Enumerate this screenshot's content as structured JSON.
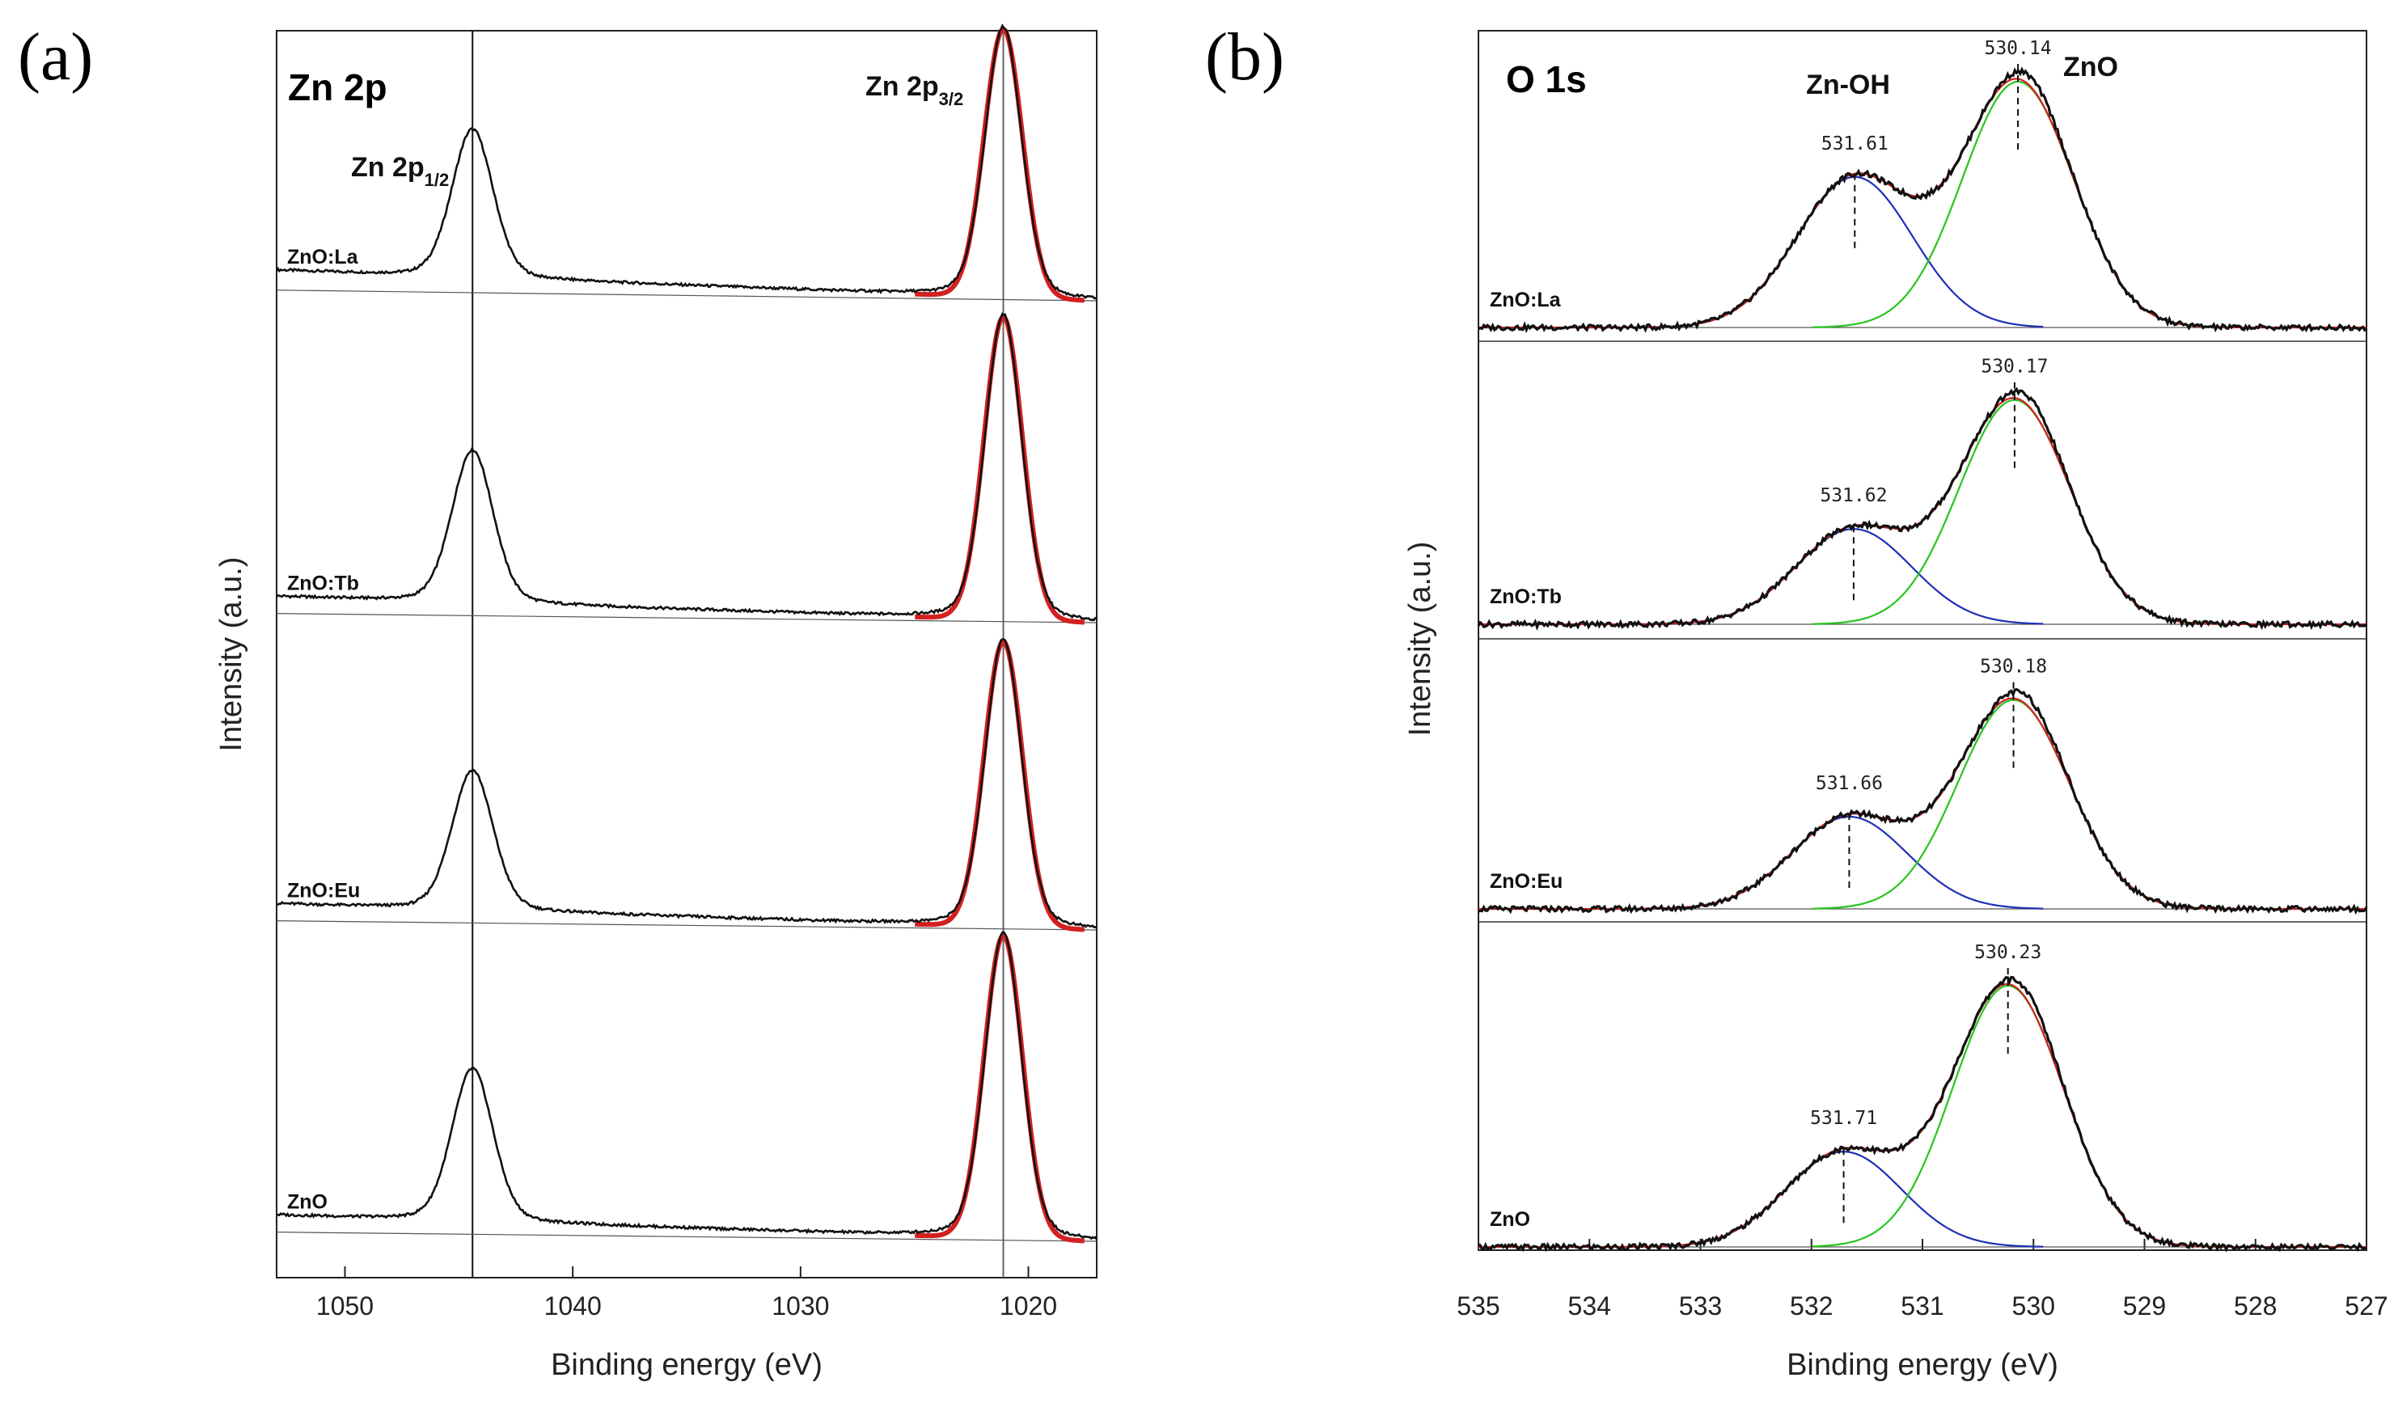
{
  "chart_data": [
    {
      "panel": "(a)",
      "type": "line",
      "title": "Zn 2p",
      "xlabel": "Binding energy (eV)",
      "ylabel": "Intensity (a.u.)",
      "xlim": [
        1053,
        1017
      ],
      "xticks": [
        1050,
        1040,
        1030,
        1020
      ],
      "tick_labels": [
        "1050",
        "1040",
        "1030",
        "1020"
      ],
      "annotations": [
        {
          "main": "Zn 2p",
          "sub": "1/2",
          "x": 1044.4
        },
        {
          "main": "Zn 2p",
          "sub": "3/2",
          "x": 1021.1
        }
      ],
      "reference_lines": [
        1044.4,
        1021.1
      ],
      "series": [
        {
          "name": "ZnO:La",
          "peaks": [
            {
              "center": 1044.4,
              "height": 0.68,
              "width": 0.9
            },
            {
              "center": 1021.1,
              "height": 1.24,
              "width": 0.8
            }
          ],
          "baseline_left": 0.14,
          "baseline_right": 0.0
        },
        {
          "name": "ZnO:Tb",
          "peaks": [
            {
              "center": 1044.4,
              "height": 0.7,
              "width": 0.9
            },
            {
              "center": 1021.1,
              "height": 1.4,
              "width": 0.8
            }
          ],
          "baseline_left": 0.12,
          "baseline_right": 0.0
        },
        {
          "name": "ZnO:Eu",
          "peaks": [
            {
              "center": 1044.4,
              "height": 0.64,
              "width": 0.9
            },
            {
              "center": 1021.1,
              "height": 1.32,
              "width": 0.8
            }
          ],
          "baseline_left": 0.12,
          "baseline_right": 0.0
        },
        {
          "name": "ZnO",
          "peaks": [
            {
              "center": 1044.4,
              "height": 0.7,
              "width": 0.9
            },
            {
              "center": 1021.1,
              "height": 1.4,
              "width": 0.8
            }
          ],
          "baseline_left": 0.12,
          "baseline_right": 0.0
        }
      ],
      "fit_color": "#d42020",
      "data_color": "#111111"
    },
    {
      "panel": "(b)",
      "type": "line",
      "title": "O 1s",
      "xlabel": "Binding energy (eV)",
      "ylabel": "Intensity (a.u.)",
      "xlim": [
        535,
        527
      ],
      "xticks": [
        535,
        534,
        533,
        532,
        531,
        530,
        529,
        528,
        527
      ],
      "tick_labels": [
        "535",
        "534",
        "533",
        "532",
        "531",
        "530",
        "529",
        "528",
        "527"
      ],
      "component_labels": [
        "Zn-OH",
        "ZnO"
      ],
      "series": [
        {
          "name": "ZnO:La",
          "znoh_peak": 531.61,
          "zno_peak": 530.14,
          "znoh_label": "531.61",
          "zno_label": "530.14",
          "znoh_height": 0.98,
          "zno_height": 1.6
        },
        {
          "name": "ZnO:Tb",
          "znoh_peak": 531.62,
          "zno_peak": 530.17,
          "znoh_label": "531.62",
          "zno_label": "530.17",
          "znoh_height": 0.62,
          "zno_height": 1.46
        },
        {
          "name": "ZnO:Eu",
          "znoh_peak": 531.66,
          "zno_peak": 530.18,
          "znoh_label": "531.66",
          "zno_label": "530.18",
          "znoh_height": 0.6,
          "zno_height": 1.36
        },
        {
          "name": "ZnO",
          "znoh_peak": 531.71,
          "zno_peak": 530.23,
          "znoh_label": "531.71",
          "zno_label": "530.23",
          "znoh_height": 0.62,
          "zno_height": 1.7
        }
      ],
      "component_colors": {
        "data": "#111111",
        "envelope": "#d42020",
        "znoh": "#1f2fb8",
        "zno": "#27c41f",
        "baseline": "#555555"
      }
    }
  ]
}
